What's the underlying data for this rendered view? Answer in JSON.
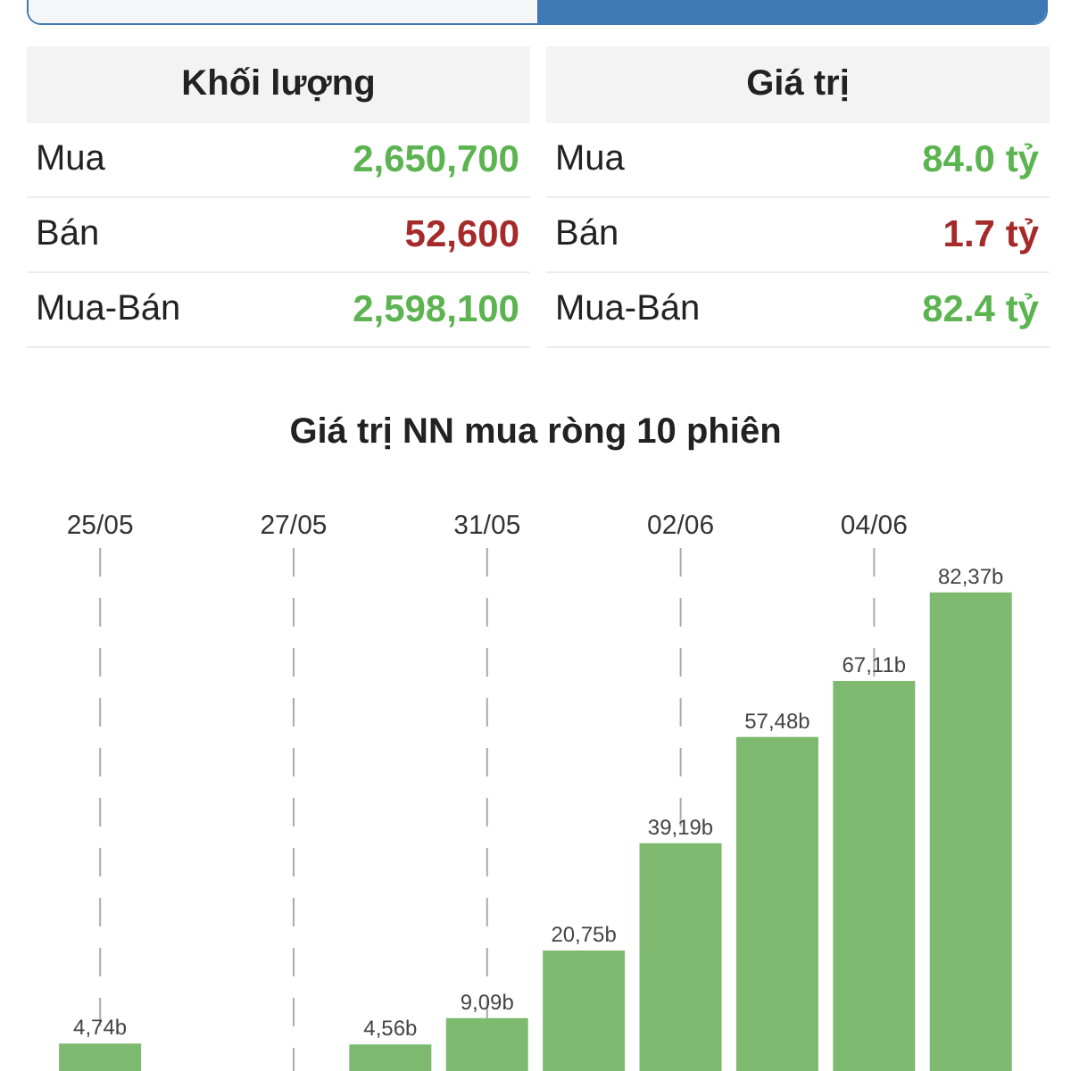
{
  "chart_data": [
    {
      "type": "other",
      "annotations": [
        "Khối lượng",
        "Giá trị",
        "Mua",
        "2,650,700",
        "Mua",
        "84.0 tỷ",
        "Bán",
        "52,600",
        "Bán",
        "1.7 tỷ",
        "Mua-Bán",
        "2,598,100",
        "Mua-Bán",
        "82.4 tỷ"
      ]
    },
    {
      "type": "bar",
      "title": "Giá trị NN mua ròng 10 phiên",
      "categories": [
        "25/05",
        null,
        "27/05",
        null,
        "31/05",
        null,
        "02/06",
        null,
        "04/06",
        null
      ],
      "values": [
        4.74,
        null,
        null,
        4.56,
        9.09,
        20.75,
        39.19,
        57.48,
        67.11,
        82.37
      ],
      "value_labels": [
        "4,74b",
        null,
        null,
        "4,56b",
        "9,09b",
        "20,75b",
        "39,19b",
        "57,48b",
        "67,11b",
        "82,37b"
      ],
      "color": "#7dba6f",
      "grid": "x"
    }
  ]
}
